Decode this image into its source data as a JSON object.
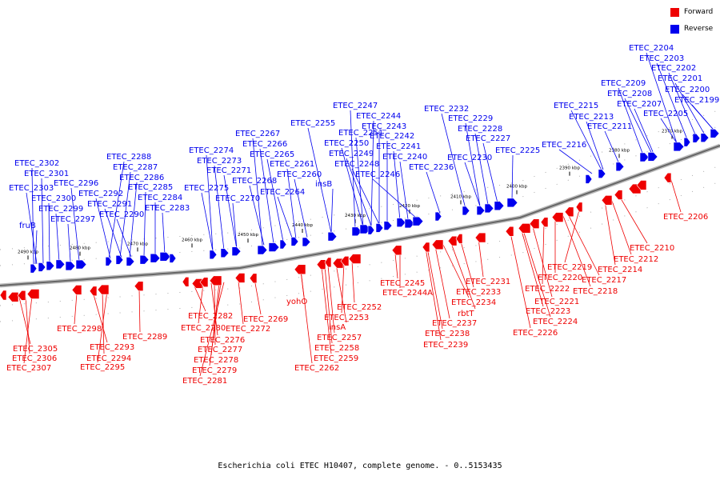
{
  "caption": "Escherichia coli ETEC H10407, complete genome. - 0..5153435",
  "legend": [
    {
      "label": "Forward",
      "color": "#ee0000"
    },
    {
      "label": "Reverse",
      "color": "#0000ee"
    }
  ],
  "colors": {
    "forward": "#ee0000",
    "reverse": "#0000ee",
    "axis": "#888888"
  },
  "scale_labels": [
    "2490 kbp",
    "2480 kbp",
    "2470 kbp",
    "2460 kbp",
    "2450 kbp",
    "2440 kbp",
    "2430 kbp",
    "2420 kbp",
    "2410 kbp",
    "2400 kbp",
    "2390 kbp",
    "2380 kbp",
    "2370 kbp"
  ],
  "reverse_labels": [
    "ETEC_2204",
    "ETEC_2203",
    "ETEC_2202",
    "ETEC_2201",
    "ETEC_2209",
    "ETEC_2200",
    "ETEC_2208",
    "ETEC_2199",
    "ETEC_2207",
    "ETEC_2215",
    "ETEC_2205",
    "ETEC_2213",
    "ETEC_2211",
    "ETEC_2216",
    "ETEC_2232",
    "ETEC_2229",
    "ETEC_2228",
    "ETEC_2227",
    "ETEC_2230",
    "ETEC_2225",
    "ETEC_2236",
    "ETEC_2247",
    "ETEC_2244",
    "ETEC_2243",
    "ETEC_2242",
    "ETEC_2255",
    "ETEC_2251",
    "ETEC_2241",
    "ETEC_2250",
    "ETEC_2240",
    "ETEC_2249",
    "ETEC_2248",
    "ETEC_2246",
    "ETEC_2267",
    "ETEC_2266",
    "ETEC_2265",
    "ETEC_2261",
    "ETEC_2260",
    "ETEC_2274",
    "ETEC_2273",
    "ETEC_2271",
    "ETEC_2268",
    "ETEC_2264",
    "insB",
    "ETEC_2275",
    "ETEC_2270",
    "ETEC_2288",
    "ETEC_2287",
    "ETEC_2286",
    "ETEC_2285",
    "ETEC_2284",
    "ETEC_2283",
    "ETEC_2292",
    "ETEC_2291",
    "ETEC_2290",
    "ETEC_2302",
    "ETEC_2301",
    "ETEC_2296",
    "ETEC_2303",
    "ETEC_2300",
    "ETEC_2299",
    "ETEC_2297",
    "fruB"
  ],
  "forward_labels": [
    "ETEC_2206",
    "ETEC_2210",
    "ETEC_2212",
    "ETEC_2214",
    "ETEC_2219",
    "ETEC_2217",
    "ETEC_2220",
    "ETEC_2218",
    "ETEC_2222",
    "ETEC_2221",
    "ETEC_2223",
    "ETEC_2224",
    "ETEC_2226",
    "ETEC_2231",
    "ETEC_2233",
    "rbtT",
    "ETEC_2234",
    "ETEC_2237",
    "ETEC_2238",
    "ETEC_2239",
    "ETEC_2245",
    "ETEC_2244A",
    "ETEC_2252",
    "ETEC_2253",
    "insA",
    "ETEC_2257",
    "ETEC_2258",
    "ETEC_2259",
    "ETEC_2262",
    "yohO",
    "ETEC_2269",
    "ETEC_2272",
    "ETEC_2282",
    "ETEC_2280",
    "ETEC_2276",
    "ETEC_2277",
    "ETEC_2278",
    "ETEC_2279",
    "ETEC_2281",
    "ETEC_2289",
    "ETEC_2298",
    "ETEC_2293",
    "ETEC_2294",
    "ETEC_2295",
    "ETEC_2305",
    "ETEC_2306",
    "ETEC_2307"
  ]
}
